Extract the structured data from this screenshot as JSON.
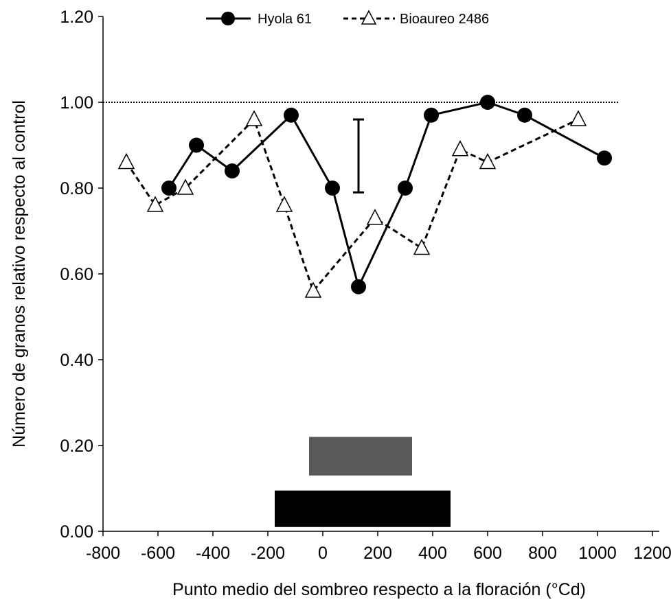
{
  "chart_data": {
    "type": "line",
    "xlabel": "Punto medio del sombreo respecto a la floración (°Cd)",
    "ylabel": "Número de granos relativo respecto al control",
    "xlim": [
      -800,
      1200
    ],
    "ylim": [
      0,
      1.2
    ],
    "x_ticks": [
      "-800",
      "-600",
      "-400",
      "-200",
      "0",
      "200",
      "400",
      "600",
      "800",
      "1000",
      "1200"
    ],
    "y_ticks": [
      "0.00",
      "0.20",
      "0.40",
      "0.60",
      "0.80",
      "1.00",
      "1.20"
    ],
    "reference_line": {
      "y": 1.0,
      "style": "dotted"
    },
    "error_bar": {
      "x": 130,
      "y_low": 0.79,
      "y_high": 0.96
    },
    "series": [
      {
        "name": "Hyola 61",
        "marker": "filled-circle",
        "line": "solid",
        "x": [
          -560,
          -460,
          -330,
          -115,
          35,
          130,
          300,
          395,
          600,
          735,
          1025
        ],
        "y": [
          0.8,
          0.9,
          0.84,
          0.97,
          0.8,
          0.57,
          0.8,
          0.97,
          1.0,
          0.97,
          0.87
        ]
      },
      {
        "name": "Bioaureo 2486",
        "marker": "open-triangle",
        "line": "dashed",
        "x": [
          -715,
          -610,
          -500,
          -250,
          -140,
          -35,
          190,
          360,
          500,
          600,
          930
        ],
        "y": [
          0.86,
          0.76,
          0.8,
          0.96,
          0.76,
          0.56,
          0.73,
          0.66,
          0.89,
          0.86,
          0.96
        ]
      }
    ],
    "bars": [
      {
        "color": "#5a5a5a",
        "x_start": -50,
        "x_end": 325,
        "y_low": 0.13,
        "y_high": 0.22
      },
      {
        "color": "#000000",
        "x_start": -175,
        "x_end": 465,
        "y_low": 0.01,
        "y_high": 0.095
      }
    ]
  }
}
